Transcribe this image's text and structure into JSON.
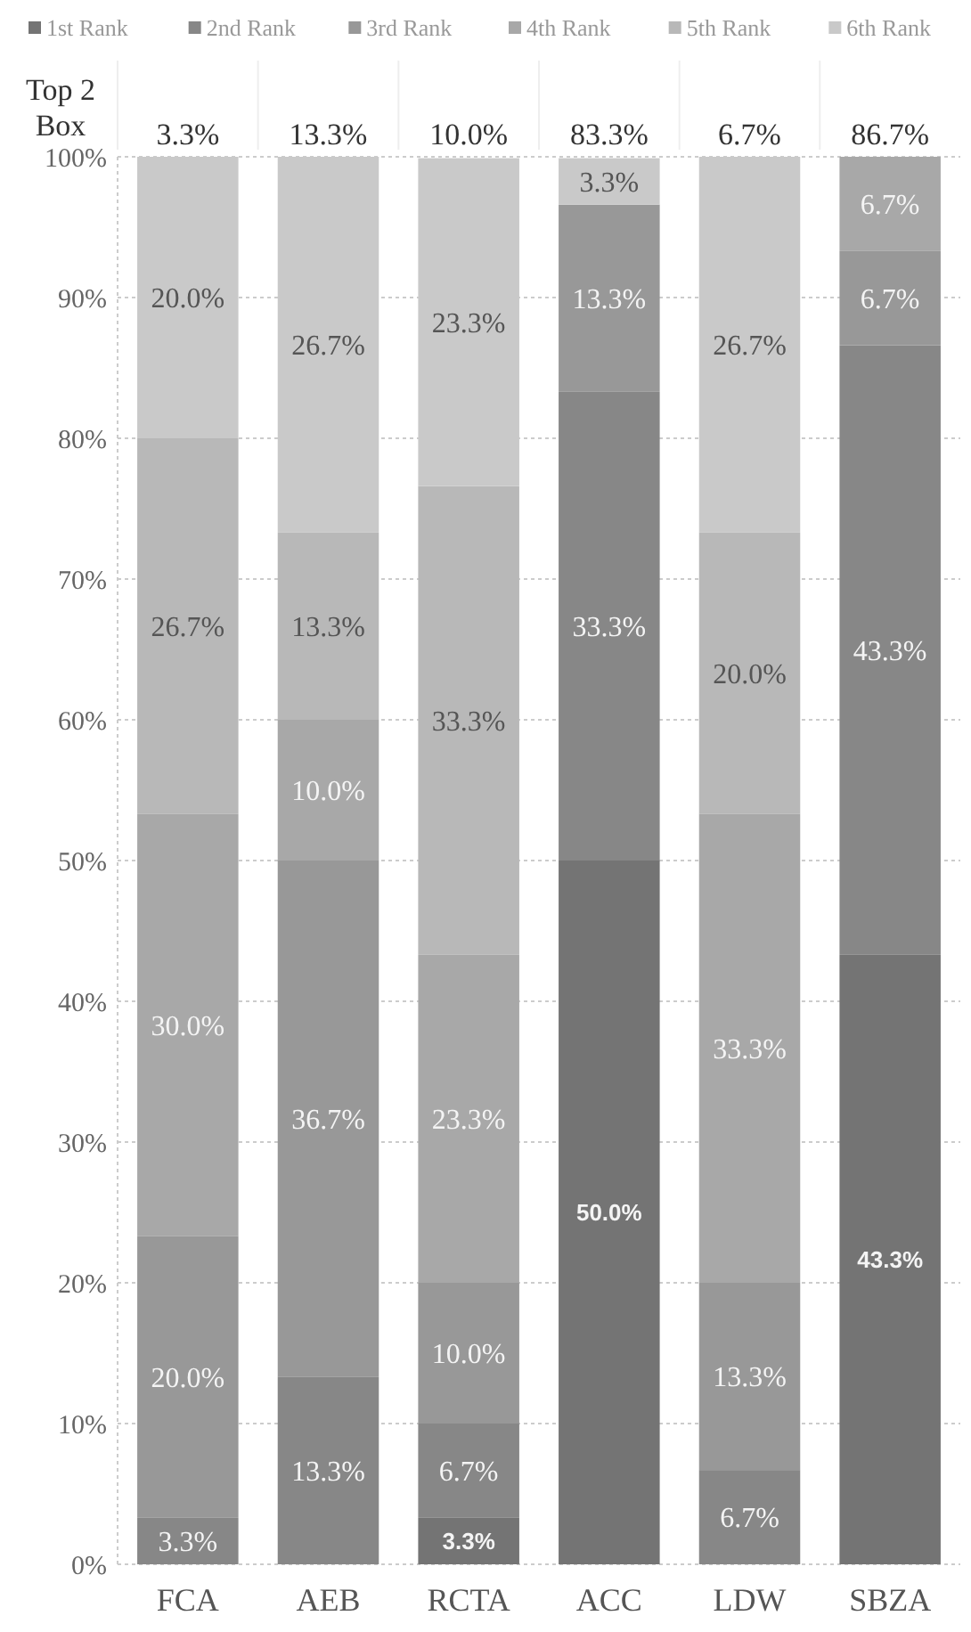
{
  "chart_data": {
    "type": "bar",
    "stacked": true,
    "categories": [
      "FCA",
      "AEB",
      "RCTA",
      "ACC",
      "LDW",
      "SBZA"
    ],
    "series": [
      {
        "name": "1st Rank",
        "color": "#747474",
        "values": [
          null,
          null,
          3.3,
          50.0,
          null,
          43.3
        ],
        "value_labels": [
          null,
          null,
          "3.3%",
          "50.0%",
          null,
          "43.3%"
        ]
      },
      {
        "name": "2nd Rank",
        "color": "#878787",
        "values": [
          3.3,
          13.3,
          6.7,
          33.3,
          6.7,
          43.3
        ],
        "value_labels": [
          "3.3%",
          "13.3%",
          "6.7%",
          "33.3%",
          "6.7%",
          "43.3%"
        ]
      },
      {
        "name": "3rd Rank",
        "color": "#989898",
        "values": [
          20.0,
          36.7,
          10.0,
          13.3,
          13.3,
          6.7
        ],
        "value_labels": [
          "20.0%",
          "36.7%",
          "10.0%",
          "13.3%",
          "13.3%",
          "6.7%"
        ]
      },
      {
        "name": "4th Rank",
        "color": "#a8a8a8",
        "values": [
          30.0,
          10.0,
          23.3,
          null,
          33.3,
          6.7
        ],
        "value_labels": [
          "30.0%",
          "10.0%",
          "23.3%",
          null,
          "33.3%",
          "6.7%"
        ]
      },
      {
        "name": "5th Rank",
        "color": "#b8b8b8",
        "values": [
          26.7,
          13.3,
          33.3,
          null,
          20.0,
          null
        ],
        "value_labels": [
          "26.7%",
          "13.3%",
          "33.3%",
          null,
          "20.0%",
          null
        ]
      },
      {
        "name": "6th Rank",
        "color": "#c9c9c9",
        "values": [
          20.0,
          26.7,
          23.3,
          3.3,
          26.7,
          null
        ],
        "value_labels": [
          "20.0%",
          "26.7%",
          "23.3%",
          "3.3%",
          "26.7%",
          null
        ]
      }
    ],
    "ylim": [
      0,
      100
    ],
    "yticks": [
      {
        "value": 0,
        "label": "0%"
      },
      {
        "value": 10,
        "label": "10%"
      },
      {
        "value": 20,
        "label": "20%"
      },
      {
        "value": 30,
        "label": "30%"
      },
      {
        "value": 40,
        "label": "40%"
      },
      {
        "value": 50,
        "label": "50%"
      },
      {
        "value": 60,
        "label": "60%"
      },
      {
        "value": 70,
        "label": "70%"
      },
      {
        "value": 80,
        "label": "80%"
      },
      {
        "value": 90,
        "label": "90%"
      },
      {
        "value": 100,
        "label": "100%"
      }
    ],
    "grid": "y",
    "legend": "top",
    "annotations": [
      "Top 2 Box",
      "3.3%",
      "13.3%",
      "10.0%",
      "83.3%",
      "6.7%",
      "86.7%"
    ]
  }
}
